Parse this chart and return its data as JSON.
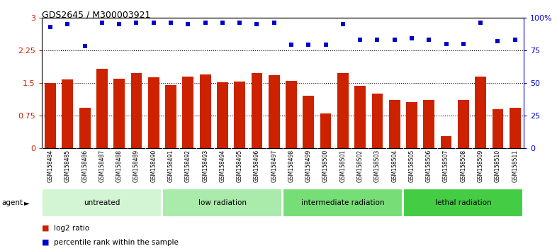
{
  "title": "GDS2645 / M300003921",
  "samples": [
    "GSM158484",
    "GSM158485",
    "GSM158486",
    "GSM158487",
    "GSM158488",
    "GSM158489",
    "GSM158490",
    "GSM158491",
    "GSM158492",
    "GSM158493",
    "GSM158494",
    "GSM158495",
    "GSM158496",
    "GSM158497",
    "GSM158498",
    "GSM158499",
    "GSM158500",
    "GSM158501",
    "GSM158502",
    "GSM158503",
    "GSM158504",
    "GSM158505",
    "GSM158506",
    "GSM158507",
    "GSM158508",
    "GSM158509",
    "GSM158510",
    "GSM158511"
  ],
  "log2_ratio": [
    1.5,
    1.58,
    0.93,
    1.82,
    1.6,
    1.72,
    1.62,
    1.45,
    1.65,
    1.7,
    1.52,
    1.53,
    1.72,
    1.68,
    1.55,
    1.2,
    0.8,
    1.72,
    1.44,
    1.25,
    1.1,
    1.05,
    1.1,
    0.28,
    1.1,
    1.65,
    0.9,
    0.92
  ],
  "percentile_rank": [
    93,
    95,
    78,
    96,
    95,
    96,
    96,
    96,
    95,
    96,
    96,
    96,
    95,
    96,
    79,
    79,
    79,
    95,
    83,
    83,
    83,
    84,
    83,
    80,
    80,
    96,
    82,
    83
  ],
  "groups": [
    {
      "label": "untreated",
      "start": 0,
      "end": 7,
      "color": "#d4f5d4"
    },
    {
      "label": "low radiation",
      "start": 7,
      "end": 14,
      "color": "#aaeaaa"
    },
    {
      "label": "intermediate radiation",
      "start": 14,
      "end": 21,
      "color": "#77dd77"
    },
    {
      "label": "lethal radiation",
      "start": 21,
      "end": 28,
      "color": "#44cc44"
    }
  ],
  "bar_color": "#cc2200",
  "dot_color": "#0000cc",
  "yticks_left": [
    0,
    0.75,
    1.5,
    2.25,
    3.0
  ],
  "ytick_labels_left": [
    "0",
    "0.75",
    "1.5",
    "2.25",
    "3"
  ],
  "yticks_right": [
    0,
    25,
    50,
    75,
    100
  ],
  "ytick_labels_right": [
    "0",
    "25",
    "50",
    "75",
    "100%"
  ],
  "ylim_left": [
    0,
    3.0
  ],
  "ylim_right": [
    0,
    100
  ],
  "hlines": [
    0.75,
    1.5,
    2.25
  ],
  "xtick_bg": "#cccccc",
  "plot_bg": "#ffffff",
  "legend_items": [
    {
      "color": "#cc2200",
      "label": "log2 ratio"
    },
    {
      "color": "#0000cc",
      "label": "percentile rank within the sample"
    }
  ]
}
